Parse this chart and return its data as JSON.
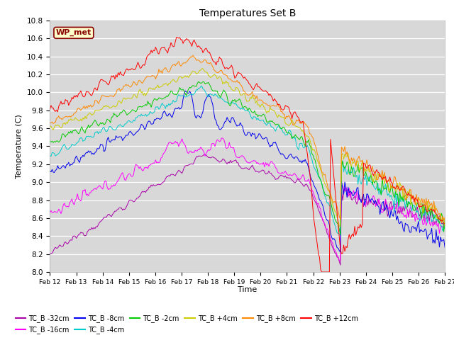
{
  "title": "Temperatures Set B",
  "xlabel": "Time",
  "ylabel": "Temperature (C)",
  "ylim": [
    8.0,
    10.8
  ],
  "x_tick_labels": [
    "Feb 12",
    "Feb 13",
    "Feb 14",
    "Feb 15",
    "Feb 16",
    "Feb 17",
    "Feb 18",
    "Feb 19",
    "Feb 20",
    "Feb 21",
    "Feb 22",
    "Feb 23",
    "Feb 24",
    "Feb 25",
    "Feb 26",
    "Feb 27"
  ],
  "annotation_text": "WP_met",
  "annotation_bg": "#ffffcc",
  "annotation_border": "#880000",
  "background_color": "#d8d8d8",
  "series": [
    {
      "label": "TC_B -32cm",
      "color": "#aa00aa"
    },
    {
      "label": "TC_B -16cm",
      "color": "#ff00ff"
    },
    {
      "label": "TC_B -8cm",
      "color": "#0000ee"
    },
    {
      "label": "TC_B -4cm",
      "color": "#00cccc"
    },
    {
      "label": "TC_B -2cm",
      "color": "#00cc00"
    },
    {
      "label": "TC_B +4cm",
      "color": "#cccc00"
    },
    {
      "label": "TC_B +8cm",
      "color": "#ff8800"
    },
    {
      "label": "TC_B +12cm",
      "color": "#ff0000"
    }
  ]
}
